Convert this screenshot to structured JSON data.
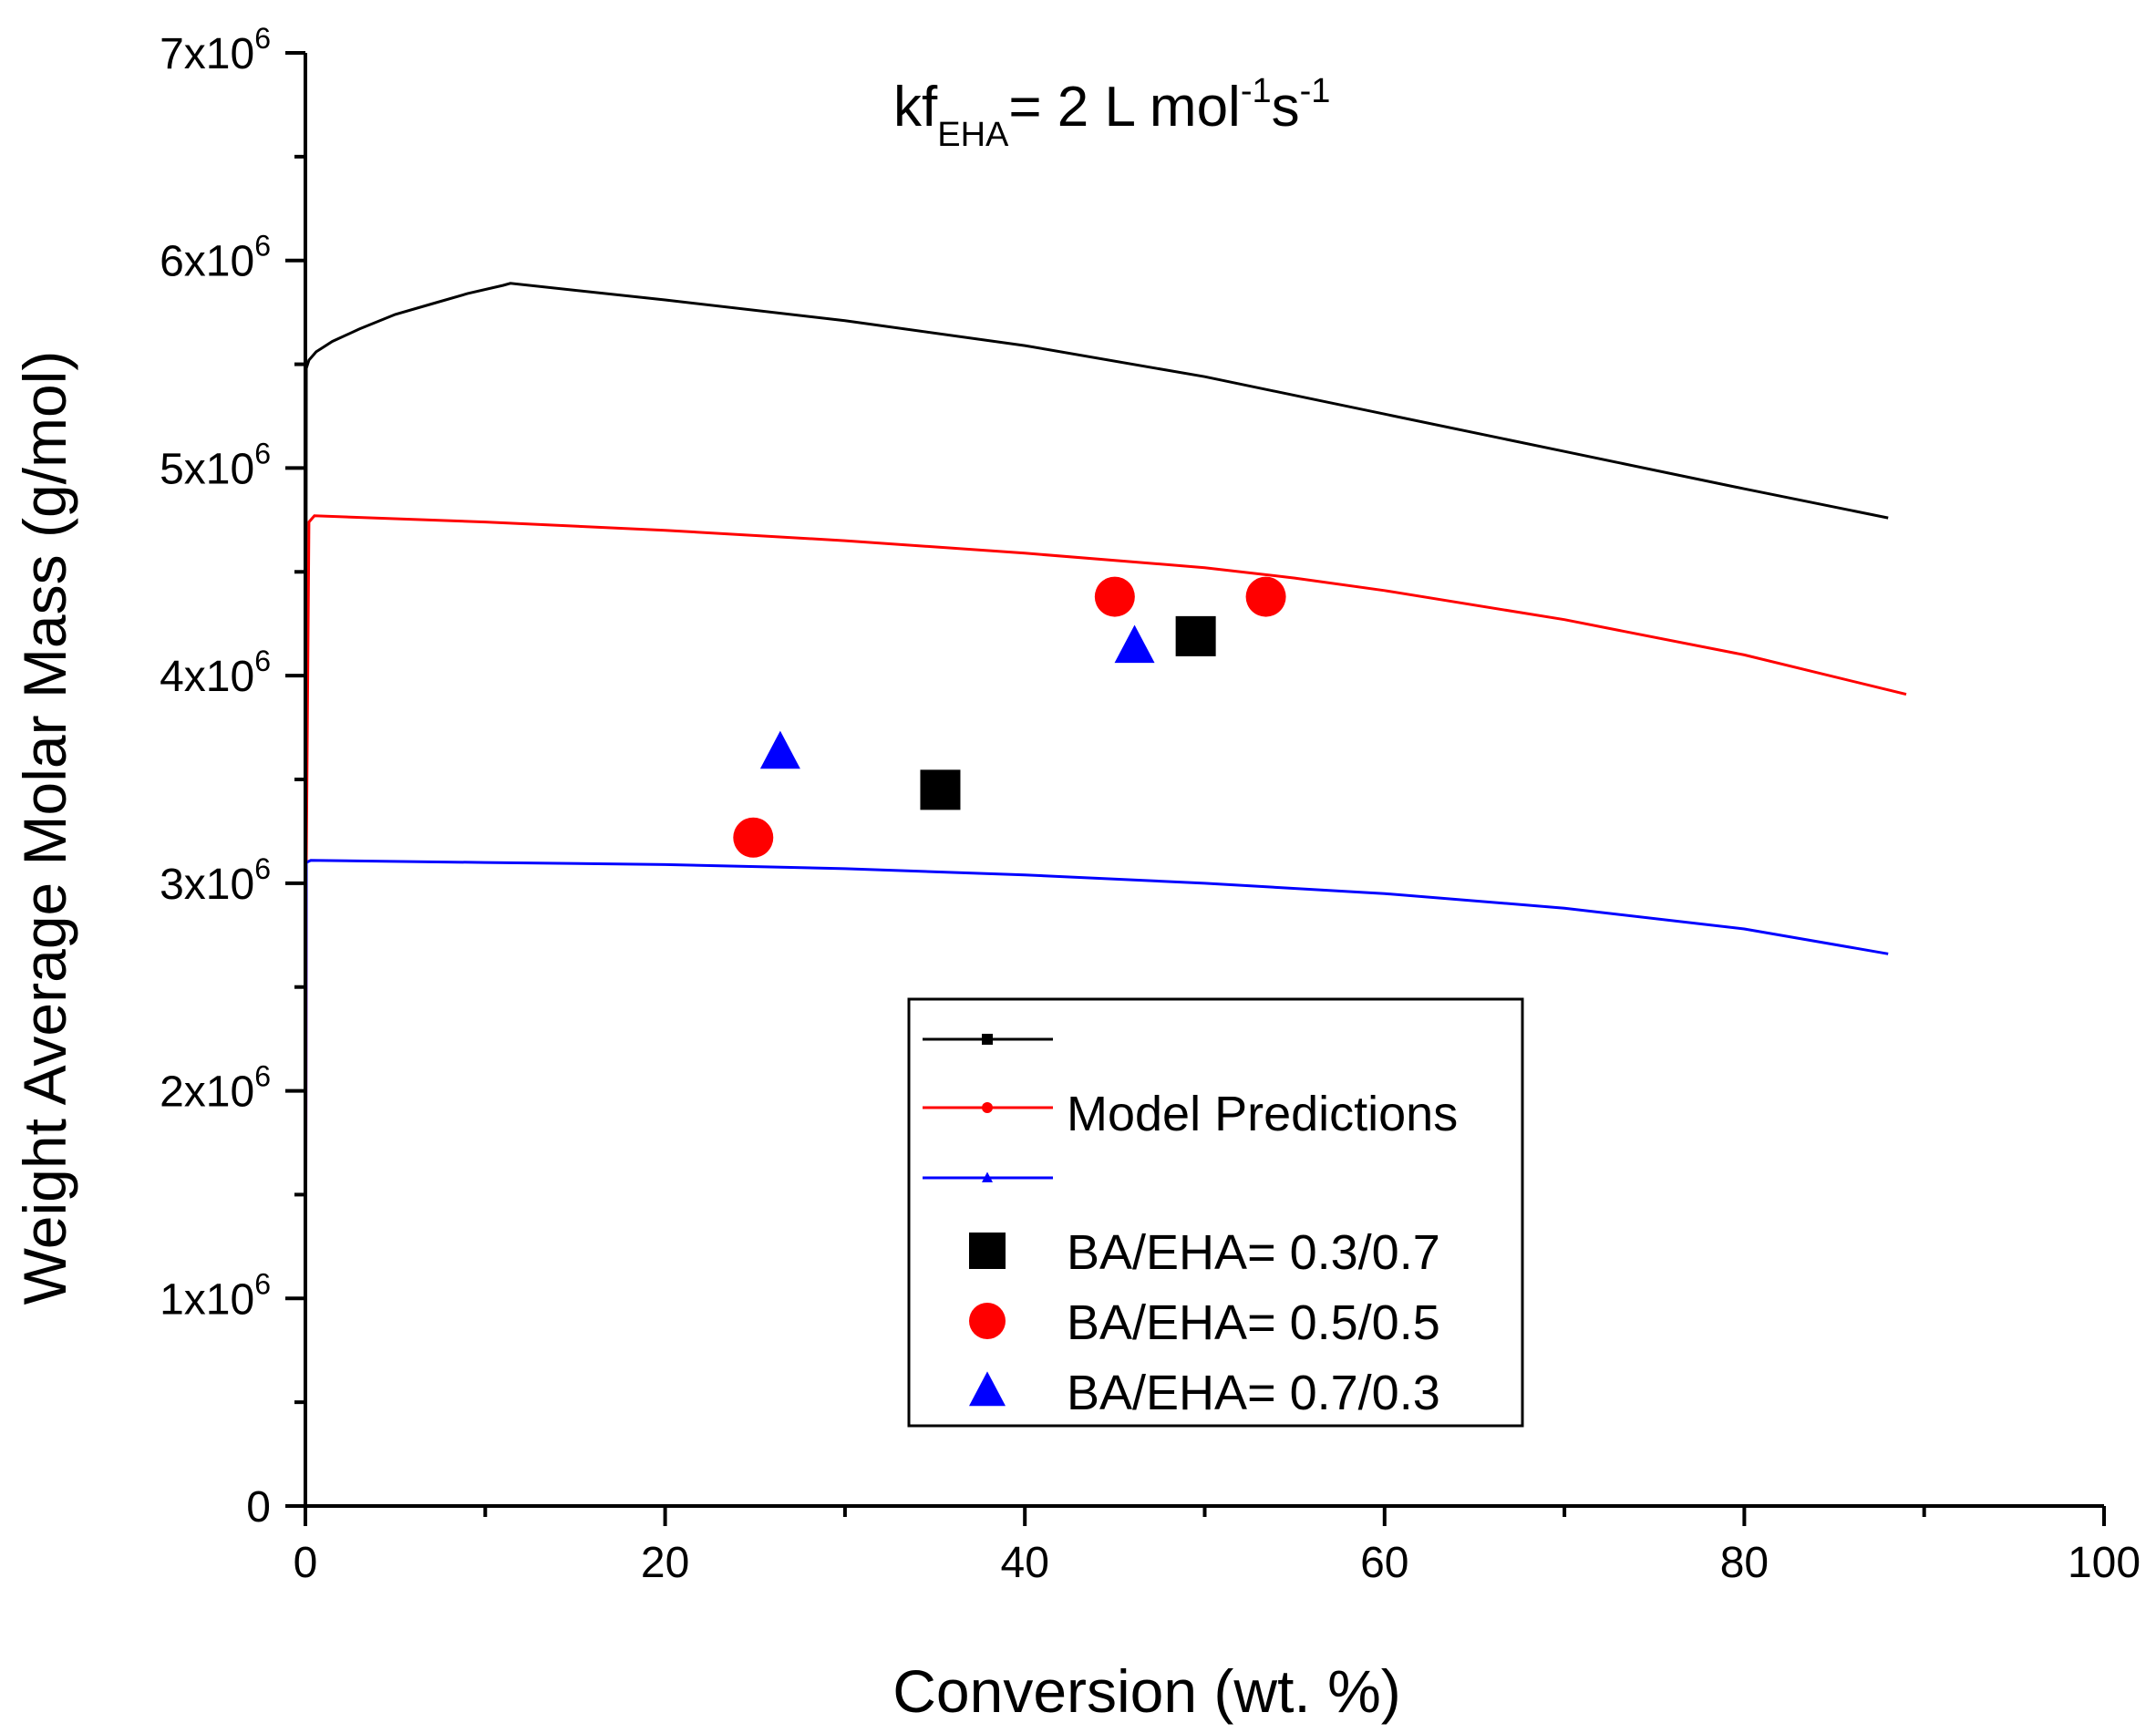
{
  "chart_data": {
    "type": "line",
    "annotation": {
      "main": "kf",
      "sub": "EHA",
      "rest": "= 2 L mol",
      "exp1": "-1",
      "s": "s",
      "exp2": "-1"
    },
    "xlabel": "Conversion (wt. %)",
    "ylabel": "Weight Average Molar Mass (g/mol)",
    "xlim": [
      0,
      100
    ],
    "ylim": [
      0,
      7000000
    ],
    "x_ticks": [
      0,
      20,
      40,
      60,
      80,
      100
    ],
    "x_tick_labels": [
      "0",
      "20",
      "40",
      "60",
      "80",
      "100"
    ],
    "y_ticks": [
      0,
      1000000,
      2000000,
      3000000,
      4000000,
      5000000,
      6000000,
      7000000
    ],
    "y_tick_labels": [
      {
        "base": "0",
        "exp": ""
      },
      {
        "base": "1x10",
        "exp": "6"
      },
      {
        "base": "2x10",
        "exp": "6"
      },
      {
        "base": "3x10",
        "exp": "6"
      },
      {
        "base": "4x10",
        "exp": "6"
      },
      {
        "base": "5x10",
        "exp": "6"
      },
      {
        "base": "6x10",
        "exp": "6"
      },
      {
        "base": "7x10",
        "exp": "6"
      }
    ],
    "grid": false,
    "legend_position": "bottom-center",
    "legend_label_model": "Model Predictions",
    "series": [
      {
        "kind": "model",
        "color": "#000000",
        "marker": "square",
        "x": [
          0,
          0.05,
          0.2,
          0.6,
          1.5,
          3,
          5,
          7,
          9,
          11,
          11.4,
          20,
          30,
          40,
          50,
          60,
          70,
          80,
          88
        ],
        "y": [
          0,
          5480000,
          5520000,
          5560000,
          5610000,
          5670000,
          5740000,
          5790000,
          5840000,
          5880000,
          5890000,
          5810000,
          5710000,
          5590000,
          5440000,
          5260000,
          5080000,
          4900000,
          4760000
        ]
      },
      {
        "kind": "model",
        "color": "#ff0000",
        "marker": "circle",
        "x": [
          0,
          0.05,
          0.2,
          0.5,
          10,
          20,
          30,
          40,
          50,
          55,
          60,
          70,
          80,
          89
        ],
        "y": [
          0,
          3100000,
          4740000,
          4770000,
          4740000,
          4700000,
          4650000,
          4590000,
          4520000,
          4470000,
          4410000,
          4270000,
          4100000,
          3910000
        ]
      },
      {
        "kind": "model",
        "color": "#0000ff",
        "marker": "triangle",
        "x": [
          0,
          0.05,
          0.3,
          10,
          20,
          30,
          40,
          50,
          60,
          70,
          80,
          88
        ],
        "y": [
          0,
          3100000,
          3110000,
          3100000,
          3090000,
          3070000,
          3040000,
          3000000,
          2950000,
          2880000,
          2780000,
          2660000
        ]
      },
      {
        "kind": "experimental",
        "name": "BA/EHA= 0.3/0.7",
        "color": "#000000",
        "marker": "square",
        "x": [
          35.3,
          49.5
        ],
        "y": [
          3450000,
          4190000
        ]
      },
      {
        "kind": "experimental",
        "name": "BA/EHA= 0.5/0.5",
        "color": "#ff0000",
        "marker": "circle",
        "x": [
          24.9,
          45,
          53.4
        ],
        "y": [
          3220000,
          4380000,
          4380000
        ]
      },
      {
        "kind": "experimental",
        "name": "BA/EHA= 0.7/0.3",
        "color": "#0000ff",
        "marker": "triangle",
        "x": [
          26.4,
          46.1
        ],
        "y": [
          3630000,
          4140000
        ]
      }
    ]
  }
}
